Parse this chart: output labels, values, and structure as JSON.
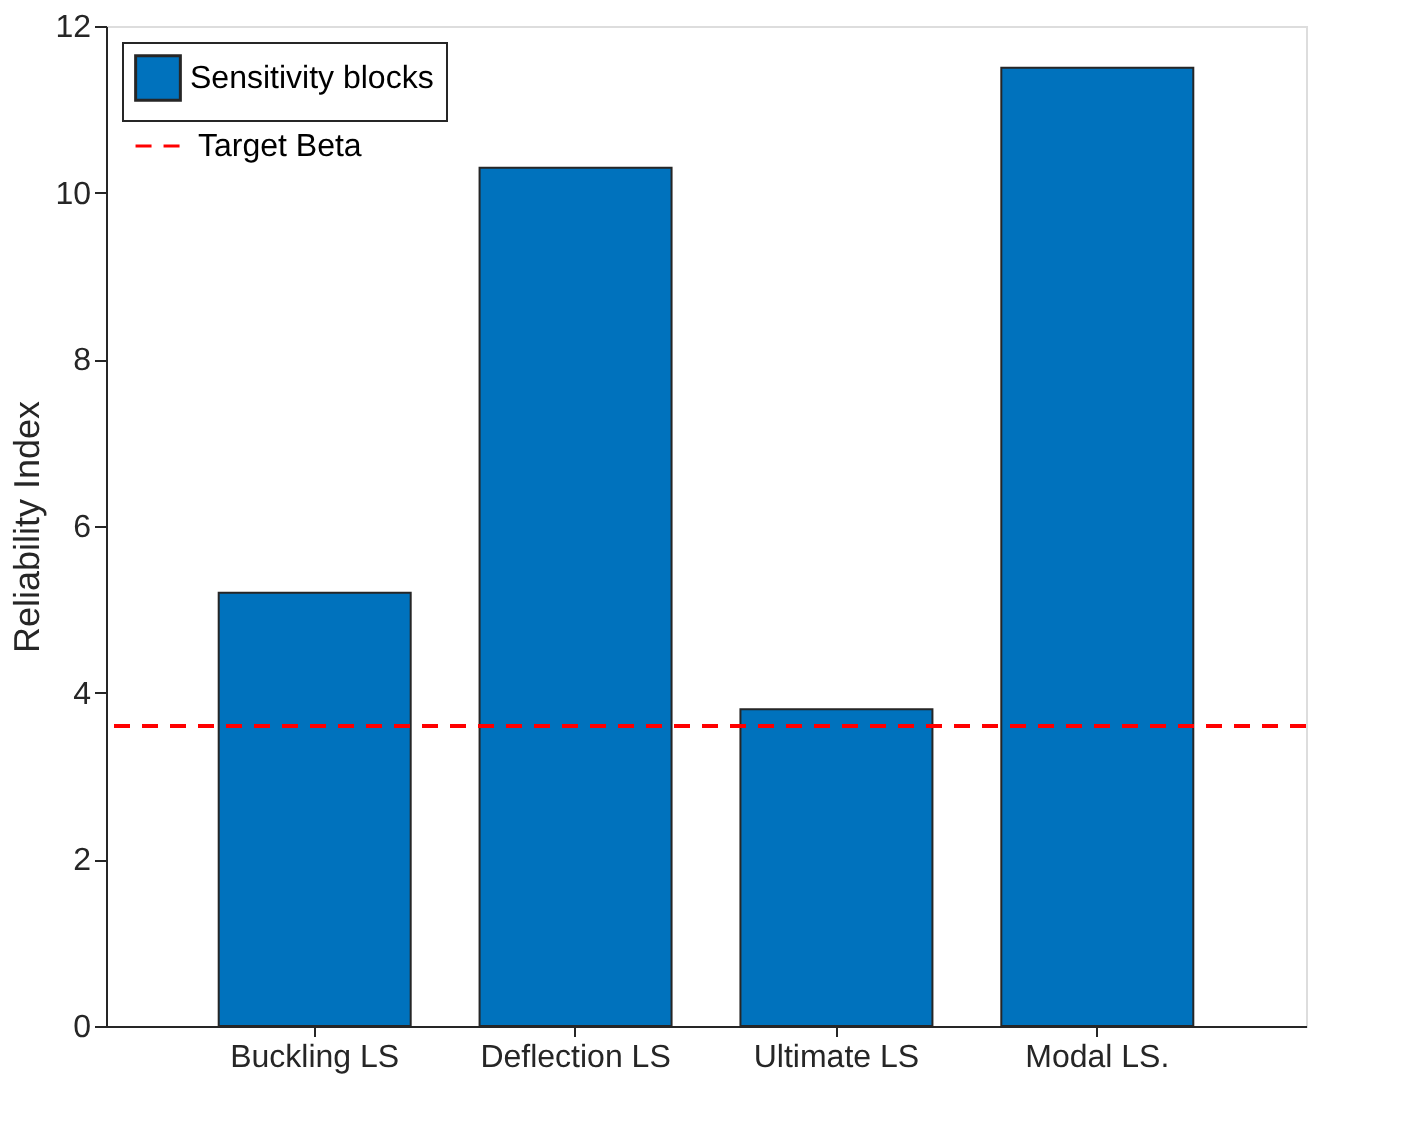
{
  "chart_data": {
    "type": "bar",
    "ylabel": "Reliability Index",
    "categories": [
      "Buckling LS",
      "Deflection LS",
      "Ultimate LS",
      "Modal LS."
    ],
    "series": [
      {
        "name": "Sensitivity blocks",
        "color": "#0072bd",
        "values": [
          5.2,
          10.3,
          3.8,
          11.5
        ]
      }
    ],
    "ref_lines": [
      {
        "axis": "y",
        "value": 3.6,
        "label": "Target Beta",
        "color": "#ff0000",
        "line_style": "dashed"
      }
    ],
    "ylim": [
      0,
      12
    ],
    "yticks": [
      0,
      2,
      4,
      6,
      8,
      10,
      12
    ],
    "grid": false,
    "legend": "top left"
  }
}
